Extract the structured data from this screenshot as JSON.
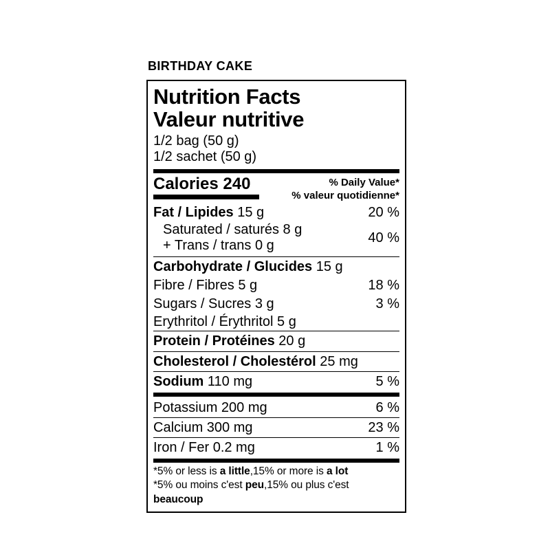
{
  "product_title": "BIRTHDAY CAKE",
  "label": {
    "title_en": "Nutrition Facts",
    "title_fr": "Valeur nutritive",
    "serving_en": "1/2 bag (50 g)",
    "serving_fr": "1/2 sachet (50 g)",
    "calories_label": "Calories 240",
    "daily_value_header_en": "% Daily Value*",
    "daily_value_header_fr": "% valeur quotidienne*",
    "rows": {
      "fat": {
        "name": "Fat / Lipides",
        "amount": " 15 g",
        "percent": "20 %"
      },
      "saturated_trans": {
        "line1": "Saturated / saturés 8 g",
        "line2": "+ Trans / trans 0 g",
        "percent": "40 %"
      },
      "carbohydrate": {
        "name": "Carbohydrate / Glucides",
        "amount": " 15 g"
      },
      "fibre": {
        "name": "Fibre / Fibres 5 g",
        "percent": "18 %"
      },
      "sugars": {
        "name": "Sugars / Sucres 3 g",
        "percent": "3 %"
      },
      "erythritol": {
        "name": "Erythritol / Érythritol 5 g"
      },
      "protein": {
        "name": "Protein / Protéines",
        "amount": " 20 g"
      },
      "cholesterol": {
        "name": "Cholesterol / Cholestérol",
        "amount": " 25 mg"
      },
      "sodium": {
        "name": "Sodium",
        "amount": " 110 mg",
        "percent": "5 %"
      },
      "potassium": {
        "name": "Potassium 200 mg",
        "percent": "6 %"
      },
      "calcium": {
        "name": "Calcium 300 mg",
        "percent": "23 %"
      },
      "iron": {
        "name": "Iron / Fer 0.2 mg",
        "percent": "1 %"
      }
    },
    "footnote_en": {
      "p1": "*5% or less is ",
      "b1": "a little",
      "p2": ",15% or more is ",
      "b2": "a lot"
    },
    "footnote_fr": {
      "p1": "*5% ou moins c'est ",
      "b1": "peu",
      "p2": ",15% ou plus c'est ",
      "b2": "beaucoup"
    }
  }
}
